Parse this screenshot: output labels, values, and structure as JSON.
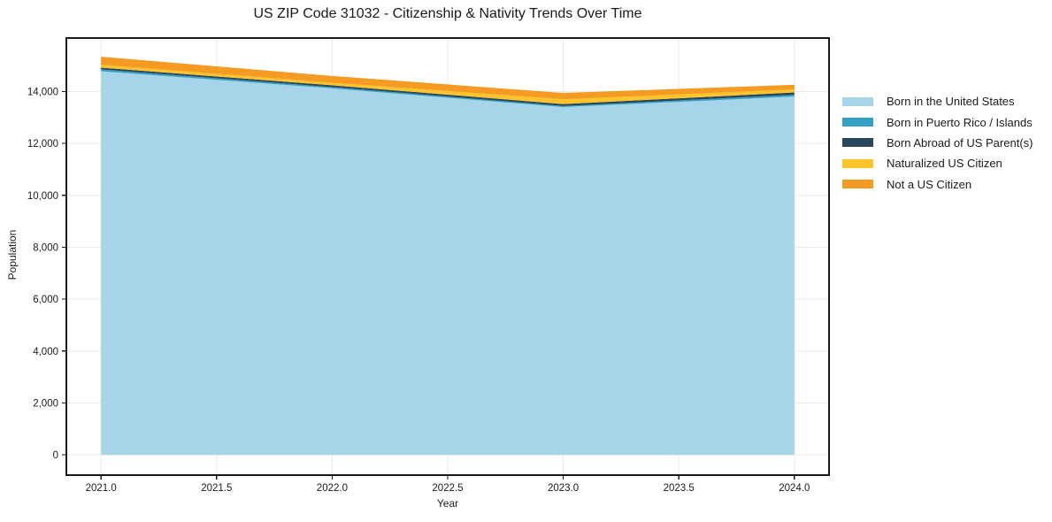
{
  "chart_data": {
    "type": "area",
    "stacked": true,
    "title": "US ZIP Code 31032 - Citizenship & Nativity Trends Over Time",
    "xlabel": "Year",
    "ylabel": "Population",
    "x": [
      2021,
      2022,
      2023,
      2024
    ],
    "series": [
      {
        "name": "Born in the United States",
        "color": "#a6d4e8",
        "values": [
          14780,
          14120,
          13400,
          13805
        ]
      },
      {
        "name": "Born in Puerto Rico / Islands",
        "color": "#35a1c2",
        "values": [
          70,
          50,
          40,
          68
        ]
      },
      {
        "name": "Born Abroad of US Parent(s)",
        "color": "#27485c",
        "values": [
          70,
          70,
          75,
          92
        ]
      },
      {
        "name": "Naturalized US Citizen",
        "color": "#fcc32d",
        "values": [
          110,
          100,
          185,
          115
        ]
      },
      {
        "name": "Not a US Citizen",
        "color": "#f59b22",
        "values": [
          310,
          260,
          245,
          180
        ]
      }
    ],
    "xlim": [
      2020.85,
      2024.15
    ],
    "ylim": [
      -780,
      16060
    ],
    "xtick_values": [
      2021.0,
      2021.5,
      2022.0,
      2022.5,
      2023.0,
      2023.5,
      2024.0
    ],
    "xtick_labels": [
      "2021.0",
      "2021.5",
      "2022.0",
      "2022.5",
      "2023.0",
      "2023.5",
      "2024.0"
    ],
    "ytick_values": [
      0,
      2000,
      4000,
      6000,
      8000,
      10000,
      12000,
      14000
    ],
    "ytick_labels": [
      "0",
      "2,000",
      "4,000",
      "6,000",
      "8,000",
      "10,000",
      "12,000",
      "14,000"
    ],
    "grid": true,
    "legend_position": "right"
  },
  "style": {
    "spine_color": "#1a1a1a",
    "grid_color": "#ebebeb",
    "tick_label_color": "#1a1a1a",
    "background": "#ffffff"
  }
}
